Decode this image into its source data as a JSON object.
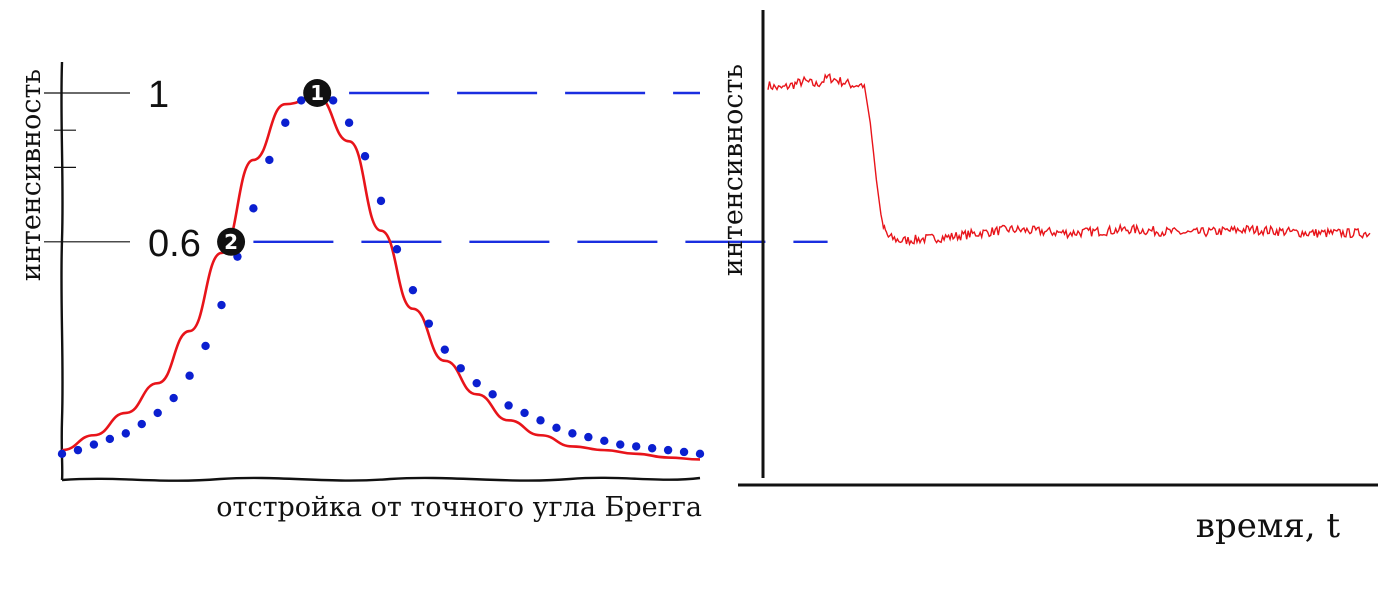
{
  "colors": {
    "axis": "#111111",
    "curve": "#e8141a",
    "dots": "#0b1fd0",
    "dashes": "#1a2ee0",
    "marker": "#111111"
  },
  "chart_data": [
    {
      "type": "line",
      "xlabel": "отстройка от точного угла Брегга",
      "ylabel": "интенсивность",
      "ylim": [
        0,
        1.04
      ],
      "y_ticks": [
        {
          "value": 1,
          "label": "1"
        },
        {
          "value": 0.6,
          "label": "0.6"
        }
      ],
      "minor_ticks": [
        0.9,
        0.8
      ],
      "grid": false,
      "series": [
        {
          "style": "solid-red",
          "x": [
            0,
            5,
            10,
            15,
            20,
            25,
            30,
            35,
            40,
            45,
            50,
            55,
            60,
            65,
            70,
            75,
            80,
            85,
            90,
            95,
            100
          ],
          "y": [
            0.04,
            0.08,
            0.14,
            0.22,
            0.36,
            0.57,
            0.82,
            0.97,
            0.99,
            0.87,
            0.63,
            0.42,
            0.28,
            0.19,
            0.12,
            0.08,
            0.05,
            0.04,
            0.03,
            0.02,
            0.015
          ]
        },
        {
          "style": "dotted-blue",
          "x": [
            0,
            2.5,
            5,
            7.5,
            10,
            12.5,
            15,
            17.5,
            20,
            22.5,
            25,
            27.5,
            30,
            32.5,
            35,
            37.5,
            40,
            42.5,
            45,
            47.5,
            50,
            52.5,
            55,
            57.5,
            60,
            62.5,
            65,
            67.5,
            70,
            72.5,
            75,
            77.5,
            80,
            82.5,
            85,
            87.5,
            90,
            92.5,
            95,
            97.5,
            100
          ],
          "y": [
            0.03,
            0.04,
            0.055,
            0.07,
            0.085,
            0.11,
            0.14,
            0.18,
            0.24,
            0.32,
            0.43,
            0.56,
            0.69,
            0.82,
            0.92,
            0.98,
            1.0,
            0.98,
            0.92,
            0.83,
            0.71,
            0.58,
            0.47,
            0.38,
            0.31,
            0.26,
            0.22,
            0.19,
            0.16,
            0.14,
            0.12,
            0.1,
            0.085,
            0.075,
            0.065,
            0.055,
            0.05,
            0.045,
            0.04,
            0.035,
            0.03
          ]
        }
      ],
      "markers": [
        {
          "label": "1",
          "x": 40,
          "y": 1.0
        },
        {
          "label": "2",
          "x": 26.5,
          "y": 0.6
        }
      ],
      "reference_lines": [
        {
          "y": 1.0,
          "style": "dashed-blue",
          "x_from": 45,
          "x_to": 100
        },
        {
          "y": 0.6,
          "style": "dashed-blue",
          "x_from": 30,
          "x_to": 120
        }
      ]
    },
    {
      "type": "line",
      "xlabel": "время, t",
      "ylabel": "интенсивность",
      "ylim": [
        0,
        1.1
      ],
      "grid": false,
      "series": [
        {
          "style": "solid-red-noisy",
          "x": [
            0,
            2,
            4,
            6,
            8,
            10,
            12,
            14,
            16,
            17,
            18,
            19,
            20,
            22,
            30,
            40,
            50,
            60,
            70,
            80,
            90,
            100
          ],
          "y": [
            1.0,
            0.99,
            1.0,
            1.01,
            1.0,
            1.02,
            1.01,
            1.0,
            1.0,
            0.9,
            0.75,
            0.63,
            0.6,
            0.59,
            0.6,
            0.62,
            0.61,
            0.62,
            0.61,
            0.62,
            0.61,
            0.61
          ]
        }
      ]
    }
  ]
}
